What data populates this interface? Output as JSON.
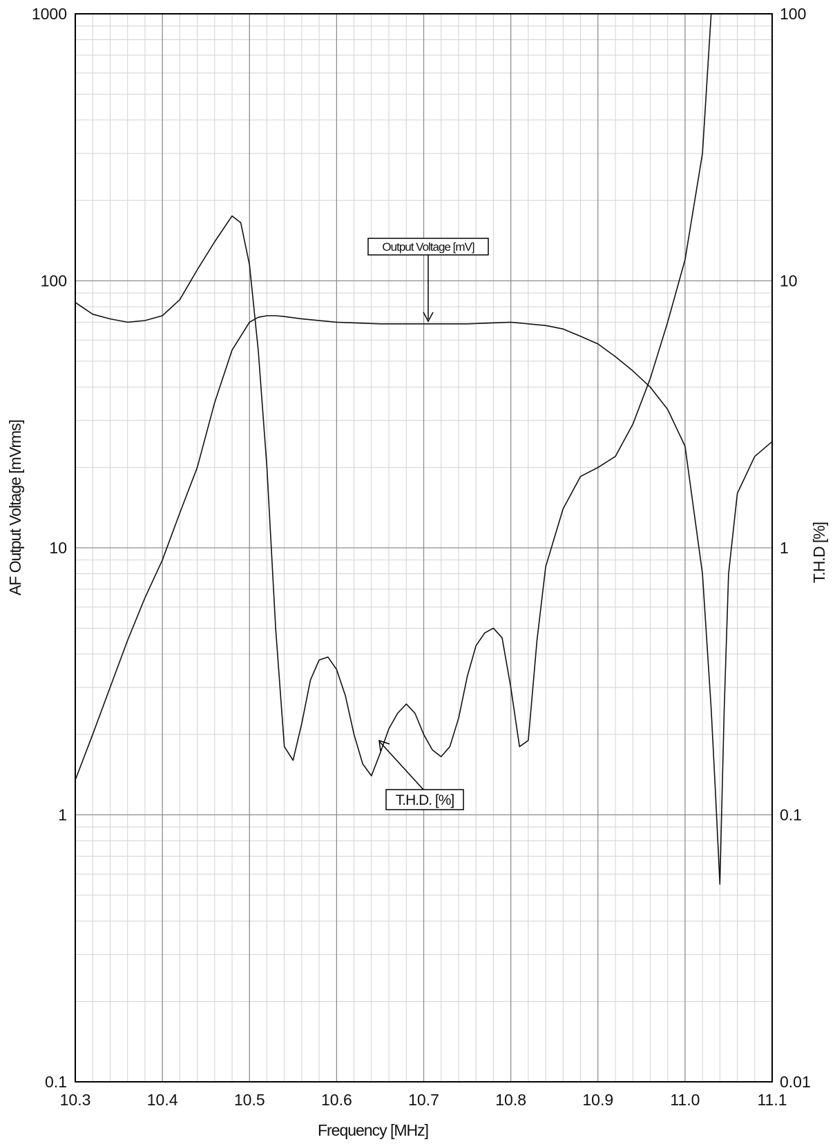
{
  "chart_data": {
    "type": "line",
    "xlabel": "Frequency [MHz]",
    "ylabel": "AF Output Voltage [mVrms]",
    "y2label": "T.H.D [%]",
    "xlim": [
      10.3,
      11.1
    ],
    "ylim": [
      0.1,
      1000
    ],
    "y2lim": [
      0.01,
      100
    ],
    "yscale": "log",
    "y2scale": "log",
    "grid": true,
    "x_ticks": [
      "10.3",
      "10.4",
      "10.5",
      "10.6",
      "10.7",
      "10.8",
      "10.9",
      "11.0",
      "11.1"
    ],
    "y_ticks": [
      "0.1",
      "1",
      "10",
      "100",
      "1000"
    ],
    "y2_ticks": [
      "0.01",
      "0.1",
      "1",
      "10",
      "100"
    ],
    "annotations": {
      "output_voltage": "Output Voltage [mV]",
      "thd": "T.H.D. [%]"
    },
    "series": [
      {
        "axis": "left",
        "x": [
          10.3,
          10.32,
          10.34,
          10.36,
          10.38,
          10.4,
          10.42,
          10.44,
          10.46,
          10.48,
          10.5,
          10.51,
          10.52,
          10.53,
          10.54,
          10.56,
          10.6,
          10.65,
          10.7,
          10.75,
          10.8,
          10.82,
          10.84,
          10.86,
          10.88,
          10.9,
          10.92,
          10.94,
          10.96,
          10.98,
          11.0,
          11.02,
          11.03,
          11.035,
          11.04,
          11.045,
          11.05,
          11.06,
          11.08,
          11.1
        ],
        "y": [
          1.35,
          2.0,
          3.0,
          4.5,
          6.5,
          9.0,
          13.5,
          20,
          35,
          55,
          70,
          73,
          74,
          74,
          73.5,
          72,
          70,
          69,
          69,
          69,
          70,
          69,
          68,
          66,
          62,
          58,
          52,
          46,
          40,
          33,
          24,
          8,
          2.5,
          1.2,
          0.55,
          2.5,
          8,
          16,
          22,
          25
        ]
      },
      {
        "axis": "right",
        "x": [
          10.3,
          10.32,
          10.34,
          10.36,
          10.38,
          10.4,
          10.42,
          10.44,
          10.46,
          10.48,
          10.49,
          10.5,
          10.51,
          10.52,
          10.53,
          10.54,
          10.55,
          10.56,
          10.57,
          10.58,
          10.59,
          10.6,
          10.61,
          10.62,
          10.63,
          10.64,
          10.65,
          10.66,
          10.67,
          10.68,
          10.69,
          10.7,
          10.71,
          10.72,
          10.73,
          10.74,
          10.75,
          10.76,
          10.77,
          10.78,
          10.79,
          10.8,
          10.81,
          10.82,
          10.83,
          10.84,
          10.86,
          10.88,
          10.9,
          10.92,
          10.94,
          10.96,
          10.98,
          11.0,
          11.02,
          11.03
        ],
        "y": [
          8.3,
          7.5,
          7.2,
          7.0,
          7.1,
          7.4,
          8.5,
          11,
          14,
          17.5,
          16.5,
          11.5,
          5.5,
          2.0,
          0.5,
          0.18,
          0.16,
          0.22,
          0.32,
          0.38,
          0.39,
          0.35,
          0.28,
          0.2,
          0.155,
          0.14,
          0.17,
          0.21,
          0.24,
          0.26,
          0.24,
          0.2,
          0.175,
          0.165,
          0.18,
          0.23,
          0.33,
          0.43,
          0.48,
          0.5,
          0.46,
          0.3,
          0.18,
          0.19,
          0.45,
          0.85,
          1.4,
          1.85,
          2.0,
          2.2,
          2.9,
          4.3,
          7.0,
          12,
          30,
          100
        ]
      }
    ]
  }
}
